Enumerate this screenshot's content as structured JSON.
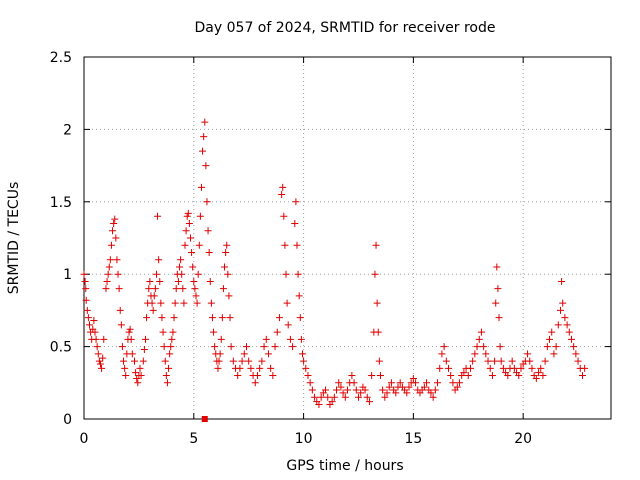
{
  "chart_data": {
    "type": "scatter",
    "title": "Day 057 of 2024, SRMTID for receiver rode",
    "xlabel": "GPS time / hours",
    "ylabel": "SRMTID / TECUs",
    "xlim": [
      0,
      24
    ],
    "ylim": [
      0,
      2.5
    ],
    "x_ticks": [
      0,
      5,
      10,
      15,
      20
    ],
    "x_tick_labels": [
      "0",
      "5",
      "10",
      "15",
      "20"
    ],
    "y_ticks": [
      0,
      0.5,
      1,
      1.5,
      2,
      2.5
    ],
    "y_tick_labels": [
      "0",
      "0.5",
      "1",
      "1.5",
      "2",
      "2.5"
    ],
    "grid": true,
    "marker": "plus",
    "color": "#e00000",
    "outlier_marker": {
      "x": 5.5,
      "y": 0.0,
      "shape": "square"
    },
    "series": [
      {
        "name": "SRMTID",
        "points": [
          [
            0.0,
            1.0
          ],
          [
            0.05,
            0.95
          ],
          [
            0.08,
            0.9
          ],
          [
            0.1,
            0.82
          ],
          [
            0.15,
            0.75
          ],
          [
            0.2,
            0.7
          ],
          [
            0.25,
            0.65
          ],
          [
            0.3,
            0.6
          ],
          [
            0.35,
            0.55
          ],
          [
            0.4,
            0.62
          ],
          [
            0.45,
            0.68
          ],
          [
            0.5,
            0.6
          ],
          [
            0.55,
            0.55
          ],
          [
            0.6,
            0.5
          ],
          [
            0.65,
            0.45
          ],
          [
            0.7,
            0.4
          ],
          [
            0.75,
            0.38
          ],
          [
            0.8,
            0.35
          ],
          [
            0.85,
            0.42
          ],
          [
            0.9,
            0.55
          ],
          [
            1.0,
            0.9
          ],
          [
            1.05,
            0.95
          ],
          [
            1.1,
            1.0
          ],
          [
            1.15,
            1.05
          ],
          [
            1.2,
            1.1
          ],
          [
            1.25,
            1.2
          ],
          [
            1.3,
            1.3
          ],
          [
            1.35,
            1.35
          ],
          [
            1.4,
            1.38
          ],
          [
            1.45,
            1.25
          ],
          [
            1.5,
            1.1
          ],
          [
            1.55,
            1.0
          ],
          [
            1.6,
            0.9
          ],
          [
            1.65,
            0.75
          ],
          [
            1.7,
            0.65
          ],
          [
            1.75,
            0.5
          ],
          [
            1.8,
            0.4
          ],
          [
            1.85,
            0.35
          ],
          [
            1.9,
            0.3
          ],
          [
            1.95,
            0.45
          ],
          [
            2.0,
            0.55
          ],
          [
            2.05,
            0.6
          ],
          [
            2.1,
            0.62
          ],
          [
            2.15,
            0.55
          ],
          [
            2.2,
            0.45
          ],
          [
            2.3,
            0.4
          ],
          [
            2.35,
            0.32
          ],
          [
            2.4,
            0.28
          ],
          [
            2.45,
            0.25
          ],
          [
            2.5,
            0.3
          ],
          [
            2.55,
            0.35
          ],
          [
            2.6,
            0.3
          ],
          [
            2.7,
            0.4
          ],
          [
            2.75,
            0.48
          ],
          [
            2.8,
            0.55
          ],
          [
            2.85,
            0.7
          ],
          [
            2.9,
            0.8
          ],
          [
            2.95,
            0.9
          ],
          [
            3.0,
            0.95
          ],
          [
            3.05,
            0.85
          ],
          [
            3.1,
            0.8
          ],
          [
            3.15,
            0.75
          ],
          [
            3.2,
            0.85
          ],
          [
            3.25,
            0.9
          ],
          [
            3.3,
            1.0
          ],
          [
            3.35,
            1.4
          ],
          [
            3.4,
            1.1
          ],
          [
            3.45,
            0.95
          ],
          [
            3.5,
            0.8
          ],
          [
            3.55,
            0.7
          ],
          [
            3.6,
            0.6
          ],
          [
            3.65,
            0.5
          ],
          [
            3.7,
            0.4
          ],
          [
            3.75,
            0.3
          ],
          [
            3.8,
            0.25
          ],
          [
            3.85,
            0.35
          ],
          [
            3.9,
            0.45
          ],
          [
            3.95,
            0.5
          ],
          [
            4.0,
            0.55
          ],
          [
            4.05,
            0.6
          ],
          [
            4.1,
            0.7
          ],
          [
            4.15,
            0.8
          ],
          [
            4.2,
            0.9
          ],
          [
            4.25,
            1.0
          ],
          [
            4.3,
            0.95
          ],
          [
            4.35,
            1.05
          ],
          [
            4.4,
            1.1
          ],
          [
            4.45,
            1.0
          ],
          [
            4.5,
            0.9
          ],
          [
            4.55,
            0.8
          ],
          [
            4.6,
            1.2
          ],
          [
            4.65,
            1.3
          ],
          [
            4.7,
            1.4
          ],
          [
            4.75,
            1.42
          ],
          [
            4.8,
            1.35
          ],
          [
            4.85,
            1.25
          ],
          [
            4.9,
            1.15
          ],
          [
            4.95,
            1.05
          ],
          [
            5.0,
            0.95
          ],
          [
            5.05,
            0.9
          ],
          [
            5.1,
            0.85
          ],
          [
            5.15,
            0.8
          ],
          [
            5.2,
            1.0
          ],
          [
            5.25,
            1.2
          ],
          [
            5.3,
            1.4
          ],
          [
            5.35,
            1.6
          ],
          [
            5.4,
            1.85
          ],
          [
            5.45,
            1.95
          ],
          [
            5.5,
            2.05
          ],
          [
            5.55,
            1.75
          ],
          [
            5.6,
            1.5
          ],
          [
            5.65,
            1.3
          ],
          [
            5.7,
            1.15
          ],
          [
            5.75,
            0.95
          ],
          [
            5.8,
            0.8
          ],
          [
            5.85,
            0.7
          ],
          [
            5.9,
            0.6
          ],
          [
            5.95,
            0.5
          ],
          [
            6.0,
            0.45
          ],
          [
            6.05,
            0.4
          ],
          [
            6.1,
            0.35
          ],
          [
            6.15,
            0.4
          ],
          [
            6.2,
            0.45
          ],
          [
            6.25,
            0.55
          ],
          [
            6.3,
            0.7
          ],
          [
            6.35,
            0.9
          ],
          [
            6.4,
            1.05
          ],
          [
            6.45,
            1.15
          ],
          [
            6.5,
            1.2
          ],
          [
            6.55,
            1.0
          ],
          [
            6.6,
            0.85
          ],
          [
            6.65,
            0.7
          ],
          [
            6.7,
            0.5
          ],
          [
            6.8,
            0.4
          ],
          [
            6.9,
            0.35
          ],
          [
            7.0,
            0.3
          ],
          [
            7.1,
            0.35
          ],
          [
            7.2,
            0.4
          ],
          [
            7.3,
            0.45
          ],
          [
            7.4,
            0.5
          ],
          [
            7.5,
            0.4
          ],
          [
            7.6,
            0.35
          ],
          [
            7.7,
            0.3
          ],
          [
            7.8,
            0.25
          ],
          [
            7.9,
            0.3
          ],
          [
            8.0,
            0.35
          ],
          [
            8.1,
            0.4
          ],
          [
            8.2,
            0.5
          ],
          [
            8.3,
            0.55
          ],
          [
            8.4,
            0.45
          ],
          [
            8.5,
            0.35
          ],
          [
            8.6,
            0.3
          ],
          [
            8.7,
            0.5
          ],
          [
            8.8,
            0.6
          ],
          [
            8.9,
            0.7
          ],
          [
            9.0,
            1.55
          ],
          [
            9.05,
            1.6
          ],
          [
            9.1,
            1.4
          ],
          [
            9.15,
            1.2
          ],
          [
            9.2,
            1.0
          ],
          [
            9.25,
            0.8
          ],
          [
            9.3,
            0.65
          ],
          [
            9.4,
            0.55
          ],
          [
            9.5,
            0.5
          ],
          [
            9.6,
            1.35
          ],
          [
            9.65,
            1.5
          ],
          [
            9.7,
            1.2
          ],
          [
            9.75,
            1.0
          ],
          [
            9.8,
            0.85
          ],
          [
            9.85,
            0.7
          ],
          [
            9.9,
            0.55
          ],
          [
            9.95,
            0.45
          ],
          [
            10.0,
            0.4
          ],
          [
            10.1,
            0.35
          ],
          [
            10.2,
            0.3
          ],
          [
            10.3,
            0.25
          ],
          [
            10.4,
            0.2
          ],
          [
            10.5,
            0.15
          ],
          [
            10.6,
            0.12
          ],
          [
            10.7,
            0.1
          ],
          [
            10.8,
            0.15
          ],
          [
            10.9,
            0.18
          ],
          [
            11.0,
            0.2
          ],
          [
            11.1,
            0.15
          ],
          [
            11.2,
            0.1
          ],
          [
            11.3,
            0.12
          ],
          [
            11.4,
            0.15
          ],
          [
            11.5,
            0.2
          ],
          [
            11.6,
            0.25
          ],
          [
            11.7,
            0.22
          ],
          [
            11.8,
            0.18
          ],
          [
            11.9,
            0.15
          ],
          [
            12.0,
            0.2
          ],
          [
            12.1,
            0.25
          ],
          [
            12.2,
            0.3
          ],
          [
            12.3,
            0.25
          ],
          [
            12.4,
            0.2
          ],
          [
            12.5,
            0.15
          ],
          [
            12.6,
            0.18
          ],
          [
            12.7,
            0.22
          ],
          [
            12.8,
            0.2
          ],
          [
            12.9,
            0.15
          ],
          [
            13.0,
            0.12
          ],
          [
            13.1,
            0.3
          ],
          [
            13.2,
            0.6
          ],
          [
            13.25,
            1.0
          ],
          [
            13.3,
            1.2
          ],
          [
            13.35,
            0.8
          ],
          [
            13.4,
            0.6
          ],
          [
            13.45,
            0.4
          ],
          [
            13.5,
            0.3
          ],
          [
            13.6,
            0.2
          ],
          [
            13.7,
            0.15
          ],
          [
            13.8,
            0.18
          ],
          [
            13.9,
            0.22
          ],
          [
            14.0,
            0.25
          ],
          [
            14.1,
            0.2
          ],
          [
            14.2,
            0.18
          ],
          [
            14.3,
            0.22
          ],
          [
            14.4,
            0.25
          ],
          [
            14.5,
            0.22
          ],
          [
            14.6,
            0.2
          ],
          [
            14.7,
            0.18
          ],
          [
            14.8,
            0.22
          ],
          [
            14.9,
            0.25
          ],
          [
            15.0,
            0.28
          ],
          [
            15.1,
            0.25
          ],
          [
            15.2,
            0.2
          ],
          [
            15.3,
            0.18
          ],
          [
            15.4,
            0.2
          ],
          [
            15.5,
            0.22
          ],
          [
            15.6,
            0.25
          ],
          [
            15.7,
            0.2
          ],
          [
            15.8,
            0.18
          ],
          [
            15.9,
            0.15
          ],
          [
            16.0,
            0.2
          ],
          [
            16.1,
            0.25
          ],
          [
            16.2,
            0.35
          ],
          [
            16.3,
            0.45
          ],
          [
            16.4,
            0.5
          ],
          [
            16.5,
            0.4
          ],
          [
            16.6,
            0.35
          ],
          [
            16.7,
            0.3
          ],
          [
            16.8,
            0.25
          ],
          [
            16.9,
            0.2
          ],
          [
            17.0,
            0.22
          ],
          [
            17.1,
            0.25
          ],
          [
            17.2,
            0.3
          ],
          [
            17.3,
            0.32
          ],
          [
            17.4,
            0.35
          ],
          [
            17.5,
            0.3
          ],
          [
            17.6,
            0.35
          ],
          [
            17.7,
            0.4
          ],
          [
            17.8,
            0.45
          ],
          [
            17.9,
            0.5
          ],
          [
            18.0,
            0.55
          ],
          [
            18.1,
            0.6
          ],
          [
            18.2,
            0.5
          ],
          [
            18.3,
            0.45
          ],
          [
            18.4,
            0.4
          ],
          [
            18.5,
            0.35
          ],
          [
            18.6,
            0.3
          ],
          [
            18.7,
            0.4
          ],
          [
            18.75,
            0.8
          ],
          [
            18.8,
            1.05
          ],
          [
            18.85,
            0.9
          ],
          [
            18.9,
            0.7
          ],
          [
            18.95,
            0.5
          ],
          [
            19.0,
            0.4
          ],
          [
            19.1,
            0.35
          ],
          [
            19.2,
            0.32
          ],
          [
            19.3,
            0.3
          ],
          [
            19.4,
            0.35
          ],
          [
            19.5,
            0.4
          ],
          [
            19.6,
            0.35
          ],
          [
            19.7,
            0.32
          ],
          [
            19.8,
            0.3
          ],
          [
            19.9,
            0.35
          ],
          [
            20.0,
            0.38
          ],
          [
            20.1,
            0.4
          ],
          [
            20.2,
            0.45
          ],
          [
            20.3,
            0.4
          ],
          [
            20.4,
            0.35
          ],
          [
            20.5,
            0.3
          ],
          [
            20.6,
            0.28
          ],
          [
            20.7,
            0.32
          ],
          [
            20.8,
            0.35
          ],
          [
            20.9,
            0.3
          ],
          [
            21.0,
            0.4
          ],
          [
            21.1,
            0.5
          ],
          [
            21.2,
            0.55
          ],
          [
            21.3,
            0.6
          ],
          [
            21.4,
            0.45
          ],
          [
            21.5,
            0.5
          ],
          [
            21.6,
            0.65
          ],
          [
            21.7,
            0.75
          ],
          [
            21.75,
            0.95
          ],
          [
            21.8,
            0.8
          ],
          [
            21.9,
            0.7
          ],
          [
            22.0,
            0.65
          ],
          [
            22.1,
            0.6
          ],
          [
            22.2,
            0.55
          ],
          [
            22.3,
            0.5
          ],
          [
            22.4,
            0.45
          ],
          [
            22.5,
            0.4
          ],
          [
            22.6,
            0.35
          ],
          [
            22.7,
            0.3
          ],
          [
            22.8,
            0.35
          ]
        ]
      }
    ]
  }
}
